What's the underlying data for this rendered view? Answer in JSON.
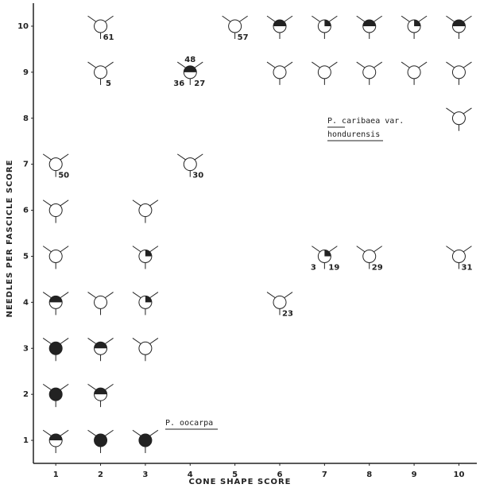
{
  "chart_data": {
    "type": "glyph-scatter",
    "xlabel": "CONE SHAPE SCORE",
    "ylabel": "NEEDLES PER FASCICLE SCORE",
    "xlim": [
      0.5,
      10.4
    ],
    "ylim": [
      0.5,
      10.5
    ],
    "xticks": [
      1,
      2,
      3,
      4,
      5,
      6,
      7,
      8,
      9,
      10
    ],
    "yticks": [
      1,
      2,
      3,
      4,
      5,
      6,
      7,
      8,
      9,
      10
    ],
    "color": "#222222",
    "x": [
      2,
      5,
      6,
      7,
      8,
      9,
      10,
      2,
      4,
      6,
      7,
      8,
      9,
      10,
      10,
      1,
      4,
      1,
      3,
      1,
      3,
      7,
      8,
      10,
      1,
      2,
      3,
      6,
      1,
      2,
      3,
      1,
      2,
      1,
      2,
      3
    ],
    "y": [
      10,
      10,
      10,
      10,
      10,
      10,
      10,
      9,
      9,
      9,
      9,
      9,
      9,
      9,
      8,
      7,
      7,
      6,
      6,
      5,
      5,
      5,
      5,
      5,
      4,
      4,
      4,
      4,
      3,
      3,
      3,
      2,
      2,
      1,
      1,
      1
    ],
    "fill": [
      "none",
      "none",
      "half",
      "quarter",
      "half",
      "quarter",
      "half",
      "none",
      "half",
      "none",
      "none",
      "none",
      "none",
      "none",
      "none",
      "none",
      "none",
      "none",
      "none",
      "none",
      "quarter",
      "quarter",
      "none",
      "none",
      "half",
      "none",
      "quarter",
      "none",
      "full",
      "half",
      "none",
      "full",
      "half",
      "half",
      "full",
      "full"
    ],
    "point_labels": [
      [
        "61"
      ],
      [
        "57"
      ],
      [],
      [],
      [],
      [],
      [],
      [
        "5"
      ],
      [
        "48",
        "36",
        "27"
      ],
      [],
      [],
      [],
      [],
      [],
      [],
      [
        "50"
      ],
      [
        "30"
      ],
      [],
      [],
      [],
      [],
      [
        "3",
        "19"
      ],
      [
        "29"
      ],
      [
        "31"
      ],
      [],
      [],
      [],
      [
        "23"
      ],
      [],
      [],
      [],
      [],
      [],
      [],
      [],
      []
    ],
    "annotations": [
      "P. caribaea var.",
      "hondurensis",
      "P. oocarpa"
    ]
  }
}
